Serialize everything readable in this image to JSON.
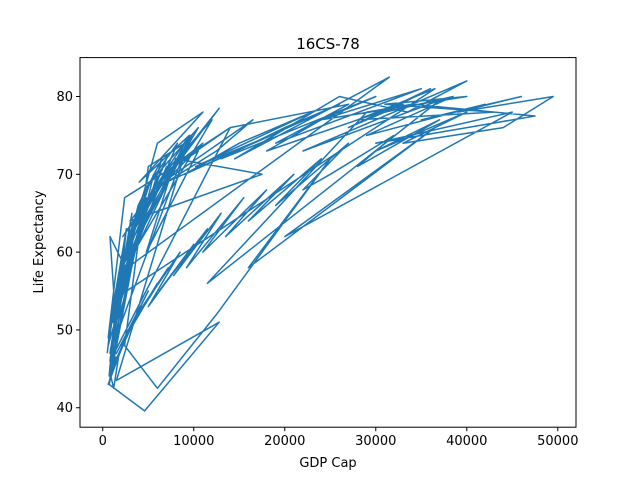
{
  "chart_data": {
    "type": "line",
    "title": "16CS-78",
    "xlabel": "GDP Cap",
    "ylabel": "Life Expectancy",
    "xlim": [
      -2500,
      52000
    ],
    "ylim": [
      37.5,
      85
    ],
    "xticks": [
      0,
      10000,
      20000,
      30000,
      40000,
      50000
    ],
    "yticks": [
      40,
      50,
      60,
      70,
      80
    ],
    "grid": false,
    "color": "#1f77b4",
    "series": [
      {
        "x": [
          500,
          1200,
          800,
          2500,
          1500,
          700,
          3000,
          1100,
          4200,
          900,
          2200,
          600,
          5000,
          1400,
          800,
          3500,
          6000,
          1800,
          700,
          2600,
          1000,
          4800,
          2100,
          900,
          7000,
          1600,
          3200,
          800,
          9000,
          2000,
          1300,
          5600,
          2800,
          1100,
          6500,
          3900,
          1500,
          8200,
          4600,
          2400,
          10500,
          5200,
          1900,
          12000,
          7400,
          3000,
          9800,
          2600,
          4300,
          11000,
          6600,
          14000,
          8800,
          5400,
          16500,
          12500,
          7000,
          18500,
          10200,
          23000,
          15000,
          9000,
          26000,
          20000,
          13000,
          30000,
          24000,
          18000,
          33000,
          27000,
          36000,
          31000,
          38500,
          29000,
          42000,
          35000,
          46000,
          39000,
          49500,
          44000,
          33000,
          40000,
          30000,
          37000,
          28000,
          32000,
          25000,
          22000,
          27000,
          19000,
          24000,
          16000,
          21000,
          13500,
          18000,
          11000,
          15500,
          9200,
          13000,
          7800,
          11500,
          6200,
          10000,
          5000,
          8500,
          3800,
          7200,
          2900,
          6000,
          2000,
          5000,
          1500,
          4200,
          1000,
          3300,
          800,
          2500,
          600,
          1800,
          1200,
          900,
          1400,
          700,
          4600,
          12800,
          1500,
          9600,
          2700,
          31500,
          14500,
          26000,
          33500,
          40000,
          22000,
          37000,
          11500,
          29000,
          34000,
          47500,
          30000,
          45000,
          20000,
          36500,
          16000,
          25000,
          12500,
          6000,
          2400,
          5000,
          9000,
          1700,
          7000,
          3500,
          1200,
          800,
          14000,
          27000,
          19000,
          35000,
          24000,
          40000,
          31000,
          43000,
          28000,
          36500,
          1300,
          6000,
          11000,
          4000,
          9500,
          2200,
          12800,
          3000,
          17500,
          8000,
          4800,
          10500,
          2400,
          600,
          1600,
          900,
          2100,
          1200,
          3400,
          1000,
          700
        ],
        "y": [
          47,
          55,
          62,
          58,
          49,
          43,
          57,
          51,
          64,
          45,
          60,
          48,
          66,
          53,
          44,
          61,
          69,
          56,
          50,
          63,
          46,
          67,
          59,
          52,
          71,
          54,
          65,
          47,
          73,
          58,
          49,
          70,
          62,
          51,
          72,
          66,
          55,
          74,
          68,
          60,
          76,
          69,
          57,
          77,
          71,
          62,
          75,
          59,
          66,
          74,
          70,
          76,
          72,
          68,
          77,
          73,
          69,
          75,
          71,
          78,
          74,
          70,
          79,
          76,
          72,
          80,
          77,
          73,
          79,
          76,
          81,
          78,
          80,
          75,
          79,
          77,
          80,
          78,
          80,
          76,
          74,
          78,
          73,
          77,
          71,
          75,
          70,
          68,
          74,
          66,
          72,
          64,
          70,
          62,
          68,
          60,
          67,
          58,
          65,
          57,
          63,
          55,
          61,
          53,
          60,
          52,
          58,
          50,
          56,
          48,
          55,
          47,
          53,
          45,
          51,
          44,
          49,
          43,
          47,
          42.5,
          44,
          46.5,
          43,
          39.6,
          51,
          43.5,
          75,
          58,
          82.5,
          72,
          80,
          78,
          82,
          73,
          79.5,
          56,
          78,
          79,
          77.5,
          74,
          78,
          62,
          76,
          58,
          72,
          52,
          42.5,
          48,
          71,
          74,
          57,
          72,
          63,
          50,
          46,
          76,
          79,
          74,
          81,
          77,
          80,
          79,
          78,
          77,
          81,
          54,
          74,
          78,
          69,
          75,
          62,
          78.5,
          64,
          70,
          72,
          60,
          73,
          67,
          49,
          56,
          46,
          58,
          52,
          62,
          48,
          44
        ]
      }
    ]
  }
}
